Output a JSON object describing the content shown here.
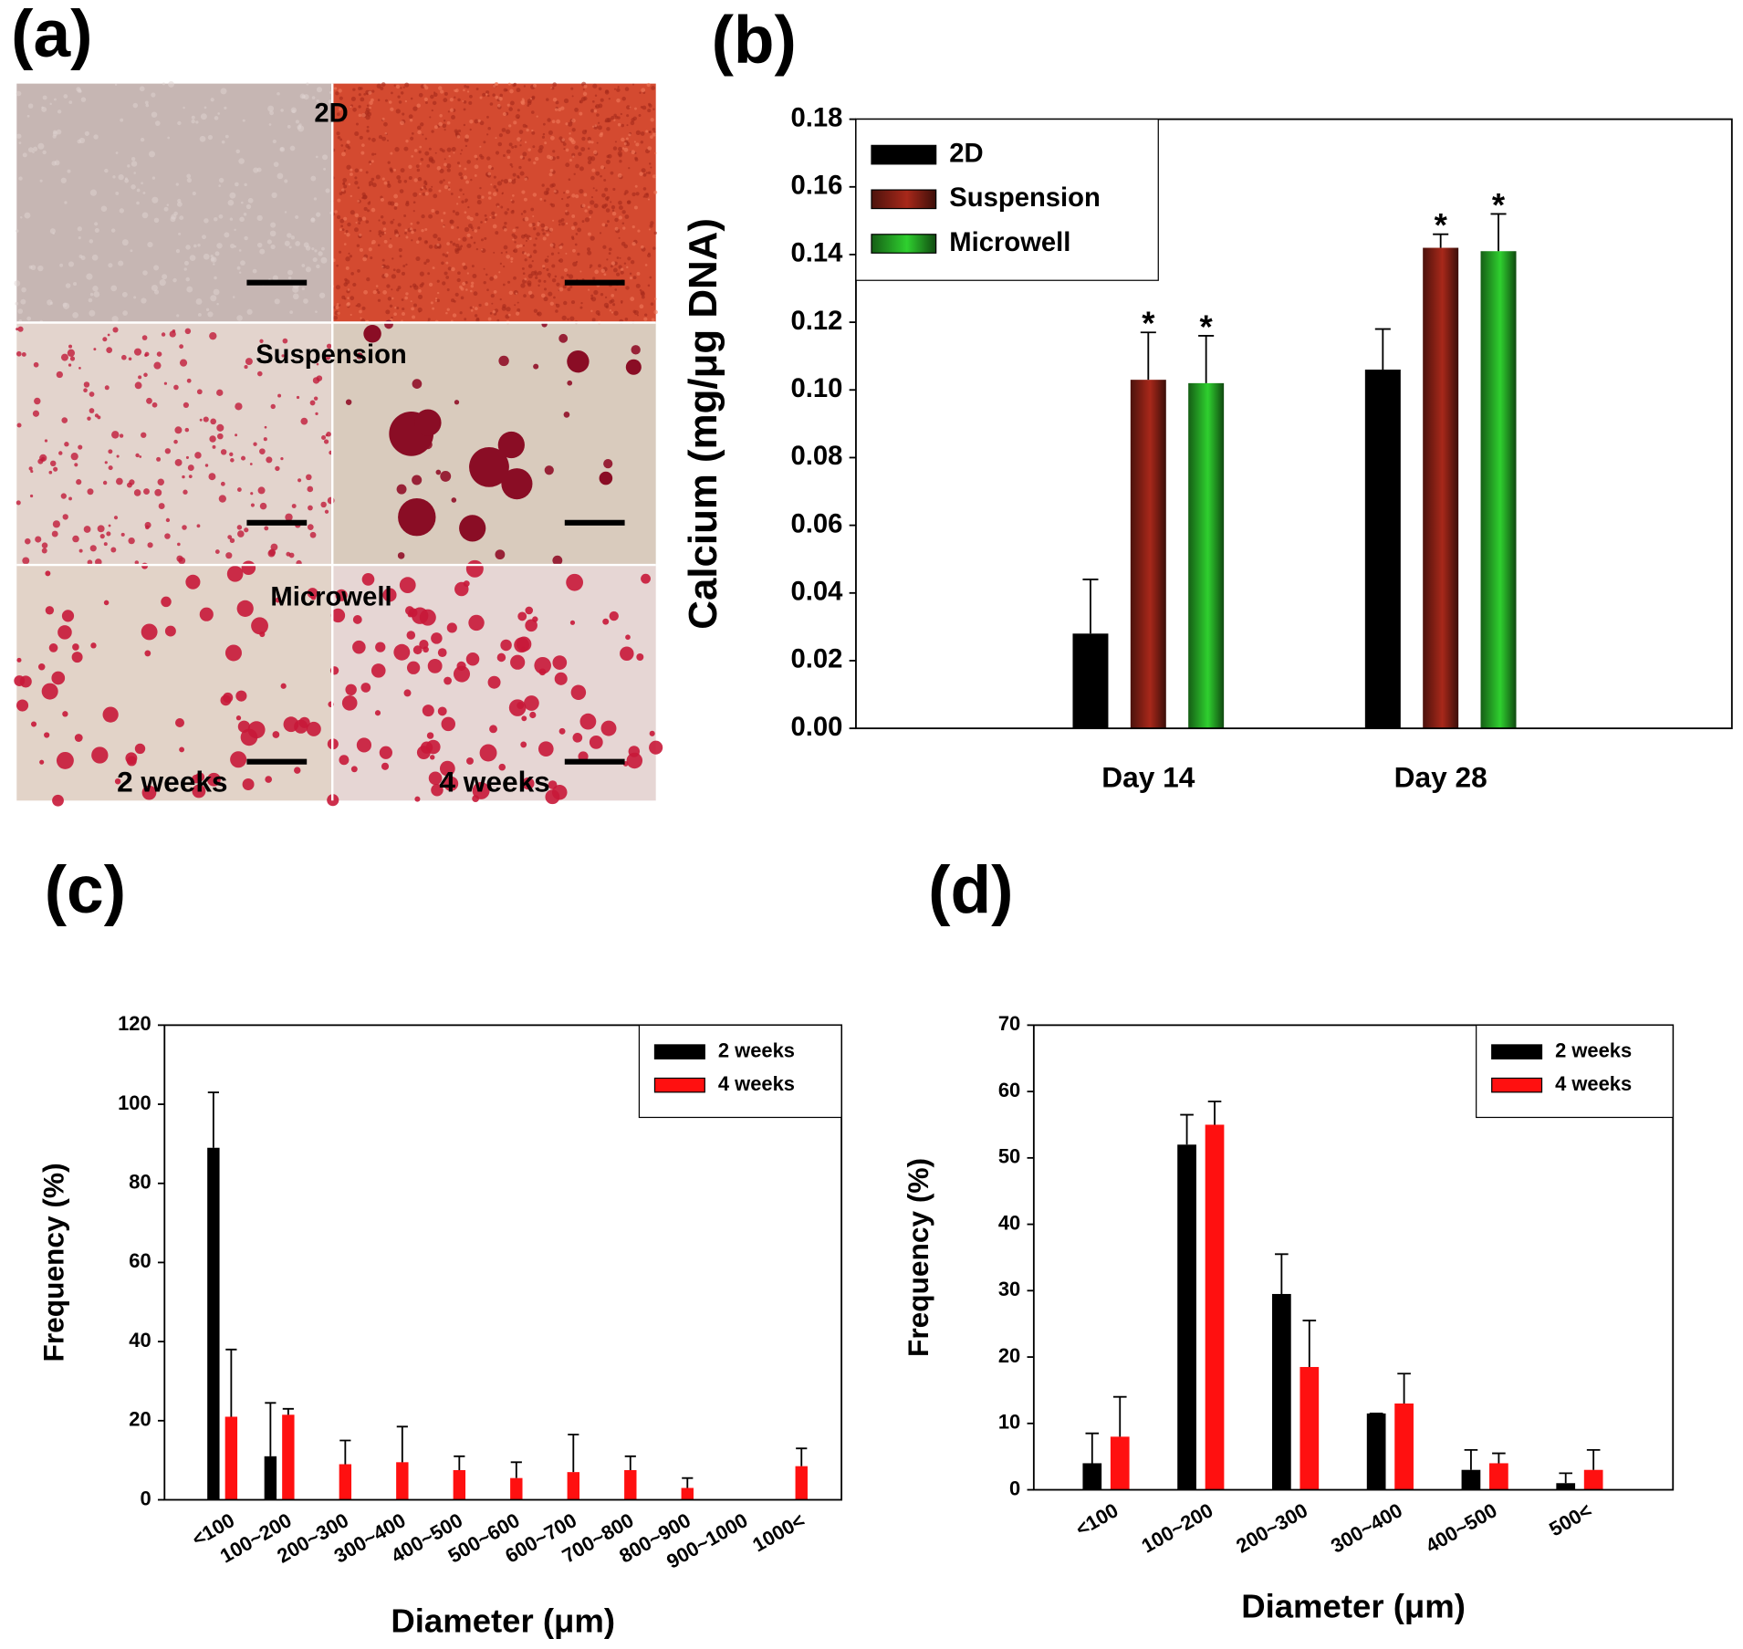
{
  "image_panel": {
    "panel_label": "(a)",
    "conditions": [
      "2D",
      "Suspension",
      "Microwell"
    ],
    "timepoints": [
      "2 weeks",
      "4 weeks"
    ]
  },
  "chart_data": [
    {
      "panel_label": "(b)",
      "type": "bar",
      "y_label": "Calcium (mg/μg DNA)",
      "categories": [
        "Day 14",
        "Day 28"
      ],
      "series": [
        {
          "name": "2D",
          "color": "#000000",
          "values": [
            0.028,
            0.106
          ],
          "errors": [
            0.016,
            0.012
          ]
        },
        {
          "name": "Suspension",
          "color": "#a8281a",
          "values": [
            0.103,
            0.142
          ],
          "errors": [
            0.014,
            0.004
          ],
          "annotations": [
            "*",
            "*"
          ]
        },
        {
          "name": "Microwell",
          "color": "#2fd02f",
          "values": [
            0.102,
            0.141
          ],
          "errors": [
            0.014,
            0.011
          ],
          "annotations": [
            "*",
            "*"
          ]
        }
      ],
      "ylim": [
        0,
        0.18
      ],
      "yticks": [
        {
          "value": 0,
          "label": "0.00"
        },
        {
          "value": 0.02,
          "label": "0.02"
        },
        {
          "value": 0.04,
          "label": "0.04"
        },
        {
          "value": 0.06,
          "label": "0.06"
        },
        {
          "value": 0.08,
          "label": "0.08"
        },
        {
          "value": 0.1,
          "label": "0.10"
        },
        {
          "value": 0.12,
          "label": "0.12"
        },
        {
          "value": 0.14,
          "label": "0.14"
        },
        {
          "value": 0.16,
          "label": "0.16"
        },
        {
          "value": 0.18,
          "label": "0.18"
        }
      ],
      "legend": "upper left",
      "gradient": true
    },
    {
      "panel_label": "(c)",
      "type": "bar",
      "x_label": "Diameter (μm)",
      "y_label": "Frequency (%)",
      "categories": [
        "<100",
        "100~200",
        "200~300",
        "300~400",
        "400~500",
        "500~600",
        "600~700",
        "700~800",
        "800~900",
        "900~1000",
        "1000<"
      ],
      "series": [
        {
          "name": "2 weeks",
          "color": "#000000",
          "values": [
            89,
            11,
            null,
            null,
            null,
            null,
            null,
            null,
            null,
            null,
            null
          ],
          "errors": [
            14,
            13.5,
            null,
            null,
            null,
            null,
            null,
            null,
            null,
            null,
            null
          ]
        },
        {
          "name": "4 weeks",
          "color": "#ff1010",
          "values": [
            21,
            21.5,
            9,
            9.5,
            7.5,
            5.5,
            7,
            7.5,
            3,
            null,
            8.5
          ],
          "errors": [
            17,
            1.5,
            6,
            9,
            3.5,
            4,
            9.5,
            3.5,
            2.5,
            null,
            4.5
          ]
        }
      ],
      "ylim": [
        0,
        120
      ],
      "yticks": [
        0,
        20,
        40,
        60,
        80,
        100,
        120
      ],
      "legend": "upper right",
      "gradient": false
    },
    {
      "panel_label": "(d)",
      "type": "bar",
      "x_label": "Diameter (μm)",
      "y_label": "Frequency (%)",
      "categories": [
        "<100",
        "100~200",
        "200~300",
        "300~400",
        "400~500",
        "500<"
      ],
      "series": [
        {
          "name": "2 weeks",
          "color": "#000000",
          "values": [
            4,
            52,
            29.5,
            11.5,
            3,
            1
          ],
          "errors": [
            4.5,
            4.5,
            6,
            0,
            3,
            1.5
          ]
        },
        {
          "name": "4 weeks",
          "color": "#ff1010",
          "values": [
            8,
            55,
            18.5,
            13,
            4,
            3
          ],
          "errors": [
            6,
            3.5,
            7,
            4.5,
            1.5,
            3
          ]
        }
      ],
      "ylim": [
        0,
        70
      ],
      "yticks": [
        0,
        10,
        20,
        30,
        40,
        50,
        60,
        70
      ],
      "legend": "upper right",
      "gradient": false
    }
  ]
}
